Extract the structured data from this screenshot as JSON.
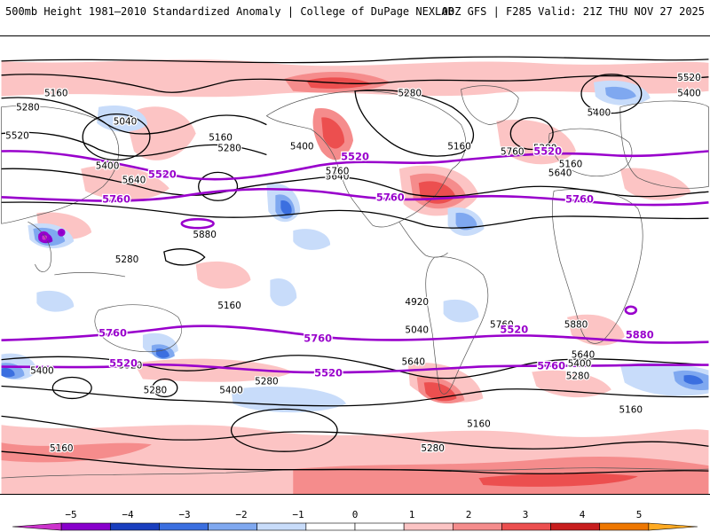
{
  "header": {
    "title": "500mb Height 1981–2010 Standardized Anomaly | College of DuPage NEXLAB",
    "run_info": "00Z GFS | F285 Valid: 21Z THU NOV 27 2025"
  },
  "map": {
    "contour_labels_black": [
      "5160",
      "5280",
      "5040",
      "5520",
      "5400",
      "5640",
      "5160",
      "5280",
      "5400",
      "5640",
      "5760",
      "5880",
      "5280",
      "5160",
      "5400",
      "5280",
      "5160",
      "5640",
      "5760",
      "5520",
      "5400",
      "5280",
      "5160",
      "4920",
      "5040",
      "5640",
      "5760",
      "5880",
      "5640",
      "5400",
      "5280",
      "5160",
      "5160",
      "5280",
      "5400",
      "5520",
      "5400",
      "5280",
      "5160",
      "5280"
    ],
    "contour_labels_purple": [
      "5520",
      "5760",
      "5520",
      "5520",
      "5760",
      "5760",
      "5760",
      "5760",
      "5520",
      "5520",
      "5520",
      "5760",
      "5880"
    ]
  },
  "colorbar": {
    "ticks": [
      "−5",
      "−4",
      "−3",
      "−2",
      "−1",
      "0",
      "1",
      "2",
      "3",
      "4",
      "5"
    ],
    "colors": [
      "#cc33cc",
      "#8800cc",
      "#1a3fbf",
      "#3b6fe0",
      "#7fa8f0",
      "#c8dcfa",
      "#ffffff",
      "#ffffff",
      "#fcc4c4",
      "#f58c8c",
      "#ec4f4f",
      "#c81e1e",
      "#ee7700",
      "#ffaa22"
    ]
  },
  "style": {
    "neg_colors": [
      "#c8dcfa",
      "#7fa8f0",
      "#3b6fe0",
      "#1a3fbf",
      "#8800cc"
    ],
    "pos_colors": [
      "#fcc4c4",
      "#f58c8c",
      "#ec4f4f",
      "#c81e1e"
    ],
    "contour_color": "#000000",
    "purple_contour_color": "#9900cc"
  }
}
